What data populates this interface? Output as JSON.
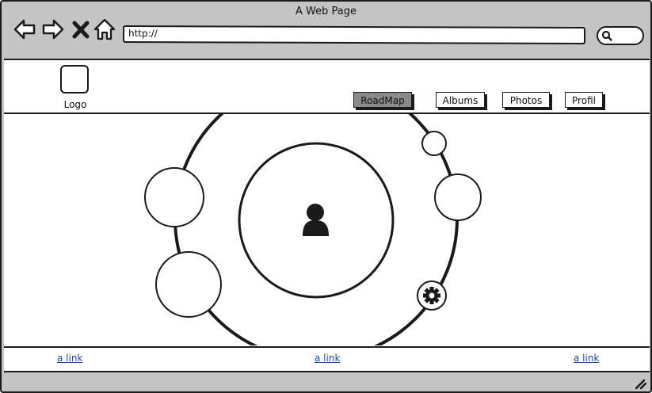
{
  "window": {
    "title": "A Web Page"
  },
  "toolbar": {
    "url_value": "http://",
    "icons": [
      "back-arrow-icon",
      "forward-arrow-icon",
      "close-x-icon",
      "home-icon",
      "search-icon"
    ]
  },
  "header": {
    "logo_label": "Logo",
    "nav": [
      {
        "label": "RoadMap",
        "active": true
      },
      {
        "label": "Albums",
        "active": false
      },
      {
        "label": "Photos",
        "active": false
      },
      {
        "label": "Profil",
        "active": false
      }
    ]
  },
  "main": {
    "center_icon": "user-icon",
    "settings_icon": "gear-icon"
  },
  "footer": {
    "links": [
      "a link",
      "a link",
      "a link"
    ]
  },
  "colors": {
    "chrome": "#c4c4c4",
    "stroke": "#1a1a1a",
    "active_button": "#8a8a8a",
    "link": "#1a4f9a"
  }
}
